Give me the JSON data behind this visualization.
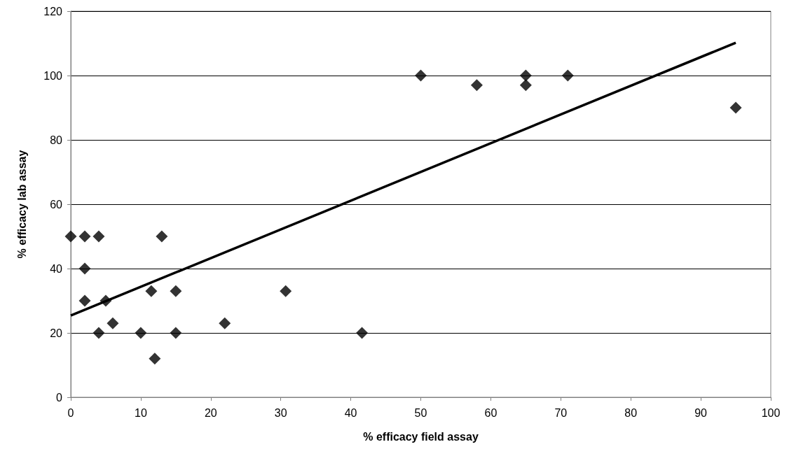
{
  "chart_data": {
    "type": "scatter",
    "xlabel": "% efficacy field assay",
    "ylabel": "% efficacy lab assay",
    "xlim": [
      0,
      100
    ],
    "xticks": [
      0,
      10,
      20,
      30,
      40,
      50,
      60,
      70,
      80,
      90,
      100
    ],
    "ylim": [
      0,
      120
    ],
    "yticks": [
      0,
      20,
      40,
      60,
      80,
      100,
      120
    ],
    "grid": "y",
    "marker": "diamond",
    "series": [
      {
        "color": "#000000",
        "x": [
          0,
          2,
          4,
          2,
          2,
          5,
          4,
          6,
          10,
          11.5,
          13,
          12,
          15,
          15,
          22,
          30.7,
          41.6,
          50,
          58,
          65,
          65,
          71,
          95
        ],
        "values": [
          50,
          50,
          50,
          40,
          30,
          30,
          20,
          23,
          20,
          33,
          50,
          12,
          33,
          20,
          23,
          33,
          20,
          100,
          97,
          100,
          97,
          100,
          90
        ]
      },
      {
        "type": "line",
        "color": "#000000",
        "marker": "none",
        "x": [
          0,
          95
        ],
        "values": [
          25.4,
          110.2
        ]
      }
    ]
  }
}
